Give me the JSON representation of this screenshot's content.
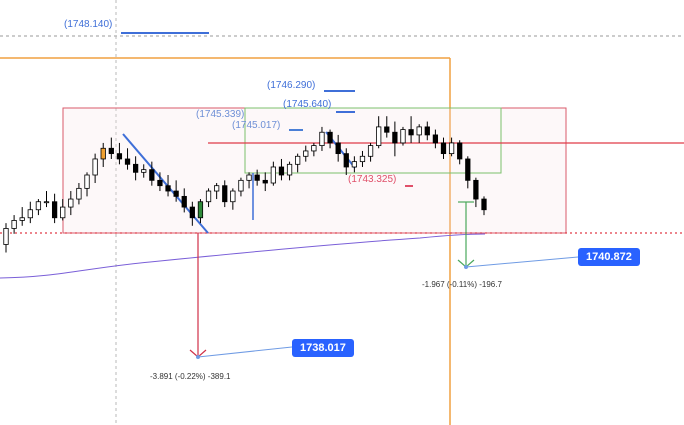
{
  "chart_data": {
    "type": "candlestick",
    "ylim": [
      1737.0,
      1748.6
    ],
    "candle_count": 60,
    "candles": [
      [
        1740.2,
        1741.0,
        1739.9,
        1740.8
      ],
      [
        1740.8,
        1741.3,
        1740.6,
        1741.1
      ],
      [
        1741.1,
        1741.6,
        1740.9,
        1741.2
      ],
      [
        1741.2,
        1741.8,
        1741.0,
        1741.5
      ],
      [
        1741.5,
        1741.9,
        1741.3,
        1741.8
      ],
      [
        1741.8,
        1742.2,
        1741.6,
        1741.8
      ],
      [
        1741.8,
        1742.1,
        1741.0,
        1741.2
      ],
      [
        1741.2,
        1741.9,
        1741.1,
        1741.6
      ],
      [
        1741.6,
        1742.2,
        1741.3,
        1741.9
      ],
      [
        1741.9,
        1742.5,
        1741.7,
        1742.3
      ],
      [
        1742.3,
        1742.9,
        1742.0,
        1742.8
      ],
      [
        1742.8,
        1743.6,
        1742.5,
        1743.4
      ],
      [
        1743.4,
        1744.0,
        1743.1,
        1743.8
      ],
      [
        1743.8,
        1744.2,
        1743.4,
        1743.6
      ],
      [
        1743.6,
        1744.0,
        1743.2,
        1743.4
      ],
      [
        1743.4,
        1743.8,
        1743.0,
        1743.2
      ],
      [
        1743.2,
        1743.5,
        1742.6,
        1742.9
      ],
      [
        1742.9,
        1743.2,
        1742.7,
        1743.0
      ],
      [
        1743.0,
        1743.3,
        1742.4,
        1742.6
      ],
      [
        1742.6,
        1742.9,
        1742.2,
        1742.4
      ],
      [
        1742.4,
        1742.8,
        1742.0,
        1742.2
      ],
      [
        1742.2,
        1742.6,
        1741.8,
        1742.0
      ],
      [
        1742.0,
        1742.3,
        1741.4,
        1741.6
      ],
      [
        1741.6,
        1741.8,
        1740.9,
        1741.2
      ],
      [
        1741.2,
        1741.9,
        1741.0,
        1741.8
      ],
      [
        1741.8,
        1742.3,
        1741.6,
        1742.2
      ],
      [
        1742.2,
        1742.5,
        1741.9,
        1742.4
      ],
      [
        1742.4,
        1742.6,
        1741.6,
        1741.8
      ],
      [
        1741.8,
        1742.3,
        1741.5,
        1742.2
      ],
      [
        1742.2,
        1742.7,
        1742.0,
        1742.6
      ],
      [
        1742.6,
        1742.9,
        1742.3,
        1742.8
      ],
      [
        1742.8,
        1743.0,
        1742.4,
        1742.6
      ],
      [
        1742.6,
        1742.9,
        1742.2,
        1742.5
      ],
      [
        1742.5,
        1743.3,
        1742.4,
        1743.1
      ],
      [
        1743.1,
        1743.4,
        1742.6,
        1742.8
      ],
      [
        1742.8,
        1743.3,
        1742.6,
        1743.2
      ],
      [
        1743.2,
        1743.6,
        1742.9,
        1743.5
      ],
      [
        1743.5,
        1743.9,
        1743.3,
        1743.7
      ],
      [
        1743.7,
        1744.0,
        1743.5,
        1743.9
      ],
      [
        1743.9,
        1744.6,
        1743.7,
        1744.4
      ],
      [
        1744.4,
        1744.5,
        1743.8,
        1744.0
      ],
      [
        1744.0,
        1744.3,
        1743.3,
        1743.6
      ],
      [
        1743.6,
        1743.8,
        1742.8,
        1743.1
      ],
      [
        1743.1,
        1743.5,
        1742.9,
        1743.3
      ],
      [
        1743.3,
        1743.7,
        1743.1,
        1743.5
      ],
      [
        1743.5,
        1744.0,
        1743.3,
        1743.9
      ],
      [
        1743.9,
        1745.0,
        1743.8,
        1744.6
      ],
      [
        1744.6,
        1745.0,
        1744.2,
        1744.4
      ],
      [
        1744.4,
        1744.8,
        1743.5,
        1744.0
      ],
      [
        1744.0,
        1744.6,
        1743.9,
        1744.5
      ],
      [
        1744.5,
        1745.0,
        1744.0,
        1744.3
      ],
      [
        1744.3,
        1744.7,
        1744.0,
        1744.6
      ],
      [
        1744.6,
        1744.8,
        1744.1,
        1744.3
      ],
      [
        1744.3,
        1744.5,
        1743.8,
        1744.0
      ],
      [
        1744.0,
        1744.2,
        1743.4,
        1743.6
      ],
      [
        1743.6,
        1744.2,
        1743.5,
        1744.0
      ],
      [
        1744.0,
        1744.1,
        1743.2,
        1743.4
      ],
      [
        1743.4,
        1743.5,
        1742.3,
        1742.6
      ],
      [
        1742.6,
        1742.7,
        1741.6,
        1741.9
      ],
      [
        1741.9,
        1742.0,
        1741.3,
        1741.5
      ]
    ],
    "horizontal_levels": [
      {
        "label": "(1748.140)",
        "price": 1748.14,
        "color": "#3f6fd8"
      },
      {
        "label": "(1746.290)",
        "price": 1746.29,
        "color": "#3f6fd8"
      },
      {
        "label": "(1745.640)",
        "price": 1745.64,
        "color": "#3f6fd8"
      },
      {
        "label": "(1745.339)",
        "price": 1745.339,
        "color": "#4a7fd6"
      },
      {
        "label": "(1745.017)",
        "price": 1745.017,
        "color": "#4a7fd6"
      },
      {
        "label": "(1743.325)",
        "price": 1743.325,
        "color": "#e0506a"
      }
    ],
    "markers": [
      {
        "value": "1740.872",
        "color": "#2962ff",
        "note": "-1.967 (-0.11%) -196.7"
      },
      {
        "value": "1738.017",
        "color": "#2962ff",
        "note": "-3.891 (-0.22%) -389.1"
      }
    ],
    "colors": {
      "bull": "#ffffff",
      "bear": "#000000",
      "bull_border": "#000000",
      "highlight_bull": "#f0a030",
      "highlight_bull2": "#2f8a3a",
      "red_line": "#e03a48",
      "orange_line": "#f0a040",
      "purple_line": "#7a5fd8",
      "green_box": "#7cc06c",
      "red_box": "#d95a6a",
      "blue_trend": "#3f6fd8"
    }
  }
}
